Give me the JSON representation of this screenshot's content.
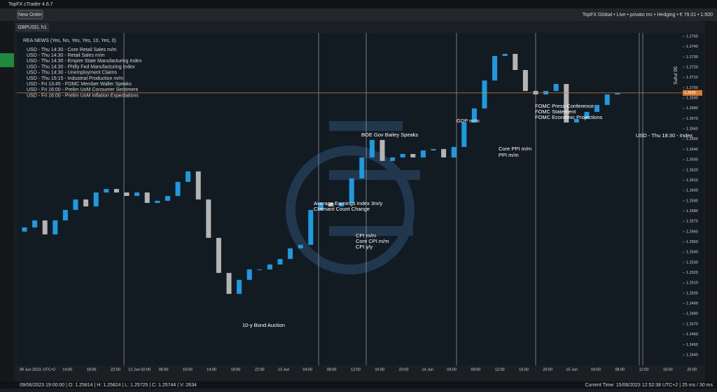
{
  "window": {
    "title": "TopFX cTrader 4.6.7"
  },
  "toolbar": {
    "new_order": "New Order",
    "account": "TopFX Global • Live • privato mc • Hedging • € 79.01 • 1:500"
  },
  "tab": "GBPUSD, h1",
  "news": {
    "header": "REA NEWS (Yes, No, Yes, Yes, 10, Yes, 0)",
    "items": [
      {
        "text": "USD - Thu 14:30 - Core Retail Sales m/m",
        "color": "#e02020"
      },
      {
        "text": "USD - Thu 14:30 - Retail Sales m/m",
        "color": "#e02020"
      },
      {
        "text": "USD - Thu 14:30 - Empire State Manufacturing Index",
        "color": "#e02020"
      },
      {
        "text": "USD - Thu 14:30 - Philly Fed Manufacturing Index",
        "color": "#f08020"
      },
      {
        "text": "USD - Thu 14:30 - Unemployment Claims",
        "color": "#e02020"
      },
      {
        "text": "USD - Thu 15:15 - Industrial Production m/m",
        "color": "#e8e8e8"
      },
      {
        "text": "USD - Fri 13:45 - FOMC Member Waller Speaks",
        "color": "#e8e8e8"
      },
      {
        "text": "USD - Fri 16:00 - Prelim UoM Consumer Sentiment",
        "color": "#e02020"
      },
      {
        "text": "USD - Fri 16:00 - Prelim UoM Inflation Expectations",
        "color": "#f08020"
      }
    ]
  },
  "events": [
    "10-y Bond Auction",
    "Average Earnings Index 3m/y",
    "Claimant Count Change",
    "CPI m/m",
    "Core CPI m/m",
    "CPI y/y",
    "BOE Gov Bailey Speaks",
    "GDP m/m",
    "Core PPI m/m",
    "PPI m/m",
    "FOMC Press Conference",
    "FOMC Statement",
    "FOMC Economic Projections",
    "USD - Thu 18:30 - Index"
  ],
  "chart": {
    "type": "candlestick",
    "ylim": [
      1.244,
      1.275
    ],
    "yticks": [
      {
        "value": 1.275,
        "label": "1.2750"
      },
      {
        "value": 1.274,
        "label": "1.2740"
      },
      {
        "value": 1.273,
        "label": "1.2730"
      },
      {
        "value": 1.272,
        "label": "1.2720"
      },
      {
        "value": 1.271,
        "label": "1.2710"
      },
      {
        "value": 1.27,
        "label": "1.2700"
      },
      {
        "value": 1.269,
        "label": "1.2690"
      },
      {
        "value": 1.268,
        "label": "1.2680"
      },
      {
        "value": 1.267,
        "label": "1.2670"
      },
      {
        "value": 1.266,
        "label": "1.2660"
      },
      {
        "value": 1.265,
        "label": "1.2650"
      },
      {
        "value": 1.264,
        "label": "1.2640"
      },
      {
        "value": 1.263,
        "label": "1.2630"
      },
      {
        "value": 1.262,
        "label": "1.2620"
      },
      {
        "value": 1.261,
        "label": "1.2610"
      },
      {
        "value": 1.26,
        "label": "1.2600"
      },
      {
        "value": 1.259,
        "label": "1.2590"
      },
      {
        "value": 1.258,
        "label": "1.2580"
      },
      {
        "value": 1.257,
        "label": "1.2570"
      },
      {
        "value": 1.256,
        "label": "1.2560"
      },
      {
        "value": 1.255,
        "label": "1.2550"
      },
      {
        "value": 1.254,
        "label": "1.2540"
      },
      {
        "value": 1.253,
        "label": "1.2530"
      },
      {
        "value": 1.252,
        "label": "1.2520"
      },
      {
        "value": 1.251,
        "label": "1.2510"
      },
      {
        "value": 1.25,
        "label": "1.2500"
      },
      {
        "value": 1.249,
        "label": "1.2490"
      },
      {
        "value": 1.248,
        "label": "1.2480"
      },
      {
        "value": 1.247,
        "label": "1.2470"
      },
      {
        "value": 1.246,
        "label": "1.2460"
      },
      {
        "value": 1.245,
        "label": "1.2450"
      },
      {
        "value": 1.244,
        "label": "1.2440"
      }
    ],
    "x_labels": [
      "09 Jun 2023, UTC+2",
      "14:00",
      "18:00",
      "22:00",
      "12 Jun 02:00",
      "06:00",
      "10:00",
      "14:00",
      "18:00",
      "22:00",
      "13 Jun",
      "04:00",
      "08:00",
      "12:00",
      "16:00",
      "20:00",
      "14 Jun",
      "04:00",
      "08:00",
      "12:00",
      "16:00",
      "20:00",
      "15 Jun",
      "04:00",
      "08:00",
      "12:00",
      "16:00",
      "20:00"
    ],
    "open": [
      1.256,
      1.25641,
      1.25709,
      1.25573,
      1.25709,
      1.25811,
      1.25913,
      1.25845,
      1.25981,
      1.26015,
      1.25981,
      1.25947,
      1.25981,
      1.25879,
      1.259,
      1.25947,
      1.26084,
      1.26186,
      1.25913,
      1.25539,
      1.25198,
      1.24994,
      1.2513,
      1.25232,
      1.25232,
      1.2528,
      1.25334,
      1.25437,
      1.25471,
      1.25811,
      1.25879,
      1.25845,
      1.25879,
      1.26118,
      1.26322,
      1.26492,
      1.26288,
      1.26322,
      1.26356,
      1.26322,
      1.2639,
      1.26404,
      1.26322,
      1.26424,
      1.26662,
      1.26799,
      1.27071,
      1.27309,
      1.2733,
      1.27173,
      1.26969,
      1.26935,
      1.26969,
      1.27037,
      1.26662,
      1.26696,
      1.26765,
      1.26833,
      1.26935
    ],
    "close": [
      1.25641,
      1.25709,
      1.25573,
      1.25709,
      1.25811,
      1.25913,
      1.25845,
      1.25981,
      1.26015,
      1.25981,
      1.25947,
      1.25981,
      1.25879,
      1.259,
      1.25947,
      1.26084,
      1.26186,
      1.25913,
      1.25539,
      1.25198,
      1.24994,
      1.2513,
      1.25232,
      1.25232,
      1.2528,
      1.25334,
      1.25437,
      1.25471,
      1.25811,
      1.25879,
      1.25845,
      1.25879,
      1.26118,
      1.26322,
      1.26492,
      1.26288,
      1.26322,
      1.26356,
      1.26322,
      1.2639,
      1.26404,
      1.26322,
      1.26424,
      1.26662,
      1.26799,
      1.27071,
      1.27309,
      1.2733,
      1.27173,
      1.26969,
      1.26935,
      1.26969,
      1.27037,
      1.26662,
      1.26696,
      1.26765,
      1.26833,
      1.26935,
      1.26948
    ],
    "up_color": "#1e9be0",
    "down_color": "#b4b4b4",
    "price_tag": {
      "value": 1.2695,
      "label": "1.2695"
    },
    "pips_label": "50 PIPS"
  },
  "status": {
    "bar": "09/06/2023 19:00:00  |  O: 1.25814  |  H: 1.25824  |  L: 1.25725  |  C: 1.25744  |  V: 2634",
    "time": "Current Time: 15/06/2023 12:52:38  UTC+2  |  25 ms / 30 ms"
  }
}
